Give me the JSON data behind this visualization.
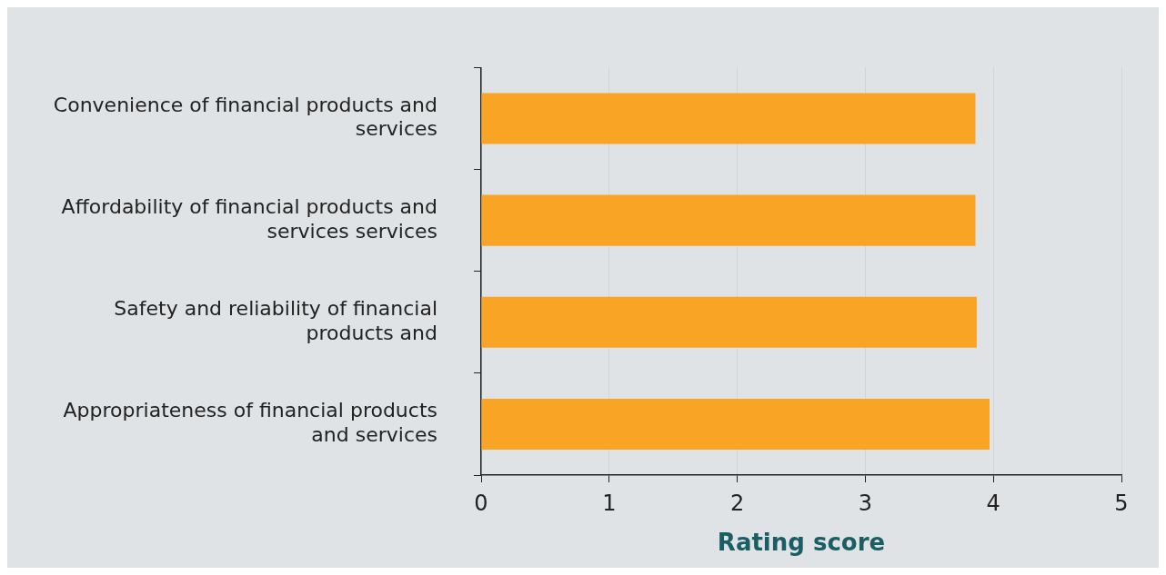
{
  "chart_data": {
    "type": "bar",
    "orientation": "horizontal",
    "xlabel": "Rating score",
    "categories": [
      "Convenience of financial products and services",
      "Affordability of financial products and services services",
      "Safety and reliability of financial products and",
      "Appropriateness of financial products and services"
    ],
    "values": [
      3.86,
      3.86,
      3.87,
      3.97
    ],
    "color": "#f9a424",
    "xlim": [
      0,
      5
    ],
    "xticks": [
      0,
      1,
      2,
      3,
      4,
      5
    ],
    "grid": "x"
  }
}
